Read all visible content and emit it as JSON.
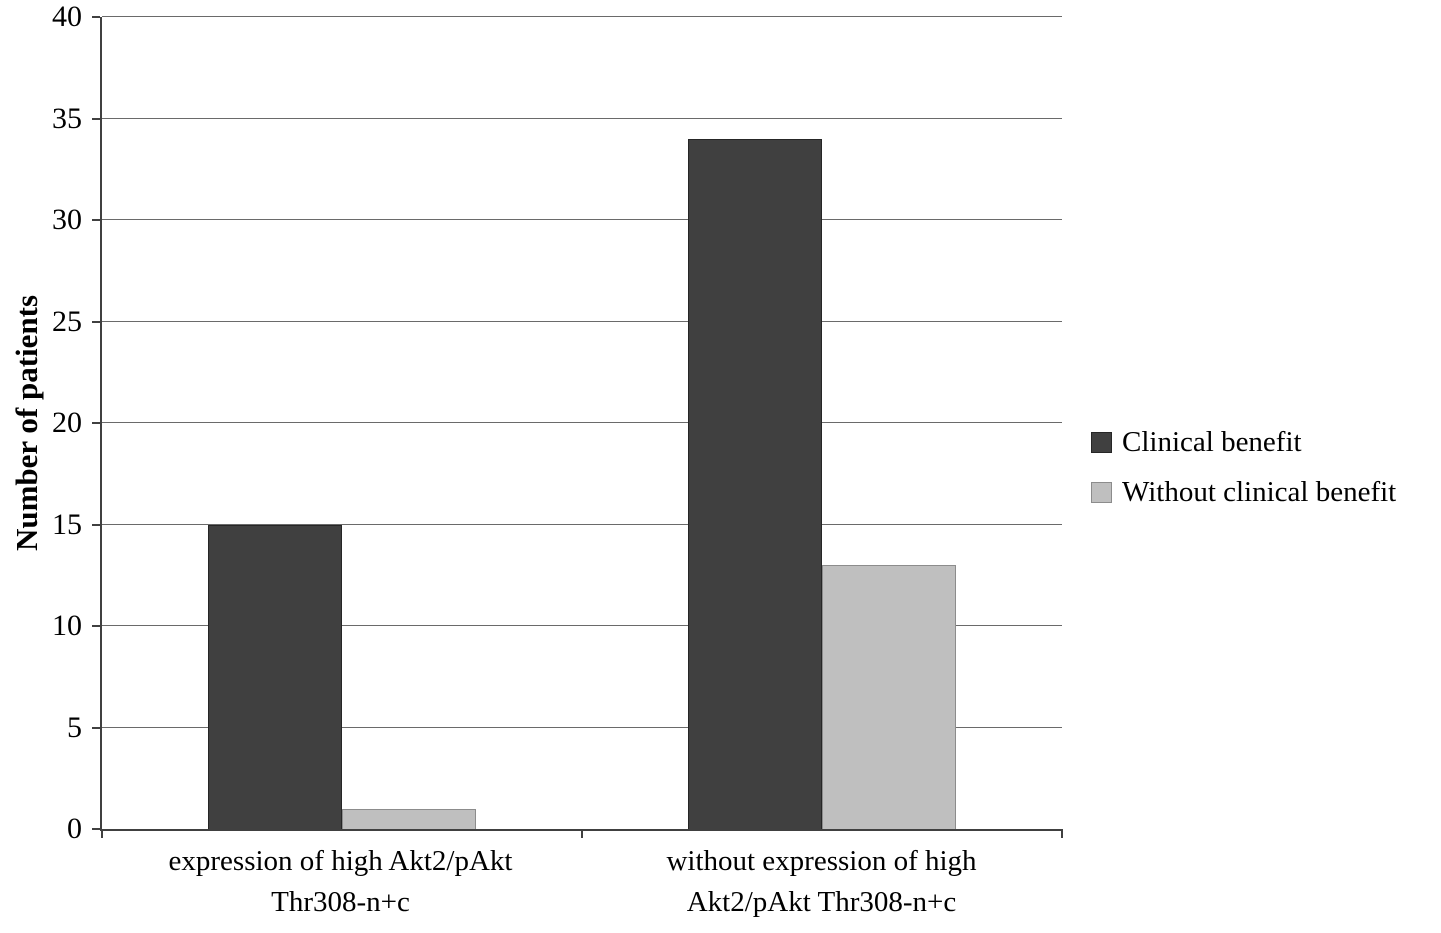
{
  "chart_data": {
    "type": "bar",
    "title": "",
    "ylabel": "Number of patients",
    "xlabel": "",
    "ylim": [
      0,
      40
    ],
    "yticks": [
      0,
      5,
      10,
      15,
      20,
      25,
      30,
      35,
      40
    ],
    "grid": true,
    "legend_position": "right",
    "categories": [
      "expression of high Akt2/pAkt Thr308-n+c",
      "without expression of high Akt2/pAkt Thr308-n+c"
    ],
    "category_display_lines": [
      [
        "expression of high Akt2/pAkt",
        "Thr308-n+c"
      ],
      [
        "without expression of high",
        "Akt2/pAkt Thr308-n+c"
      ]
    ],
    "series": [
      {
        "name": "Clinical benefit",
        "values": [
          15,
          34
        ],
        "color": "#404040",
        "border_color": "#262626"
      },
      {
        "name": "Without clinical benefit",
        "values": [
          1,
          13
        ],
        "color": "#bfbfbf",
        "border_color": "#8c8c8c"
      }
    ]
  },
  "style_colors": {
    "background": "#ffffff",
    "axis": "#404040",
    "gridline": "#6a6a6a",
    "text": "#000000"
  }
}
